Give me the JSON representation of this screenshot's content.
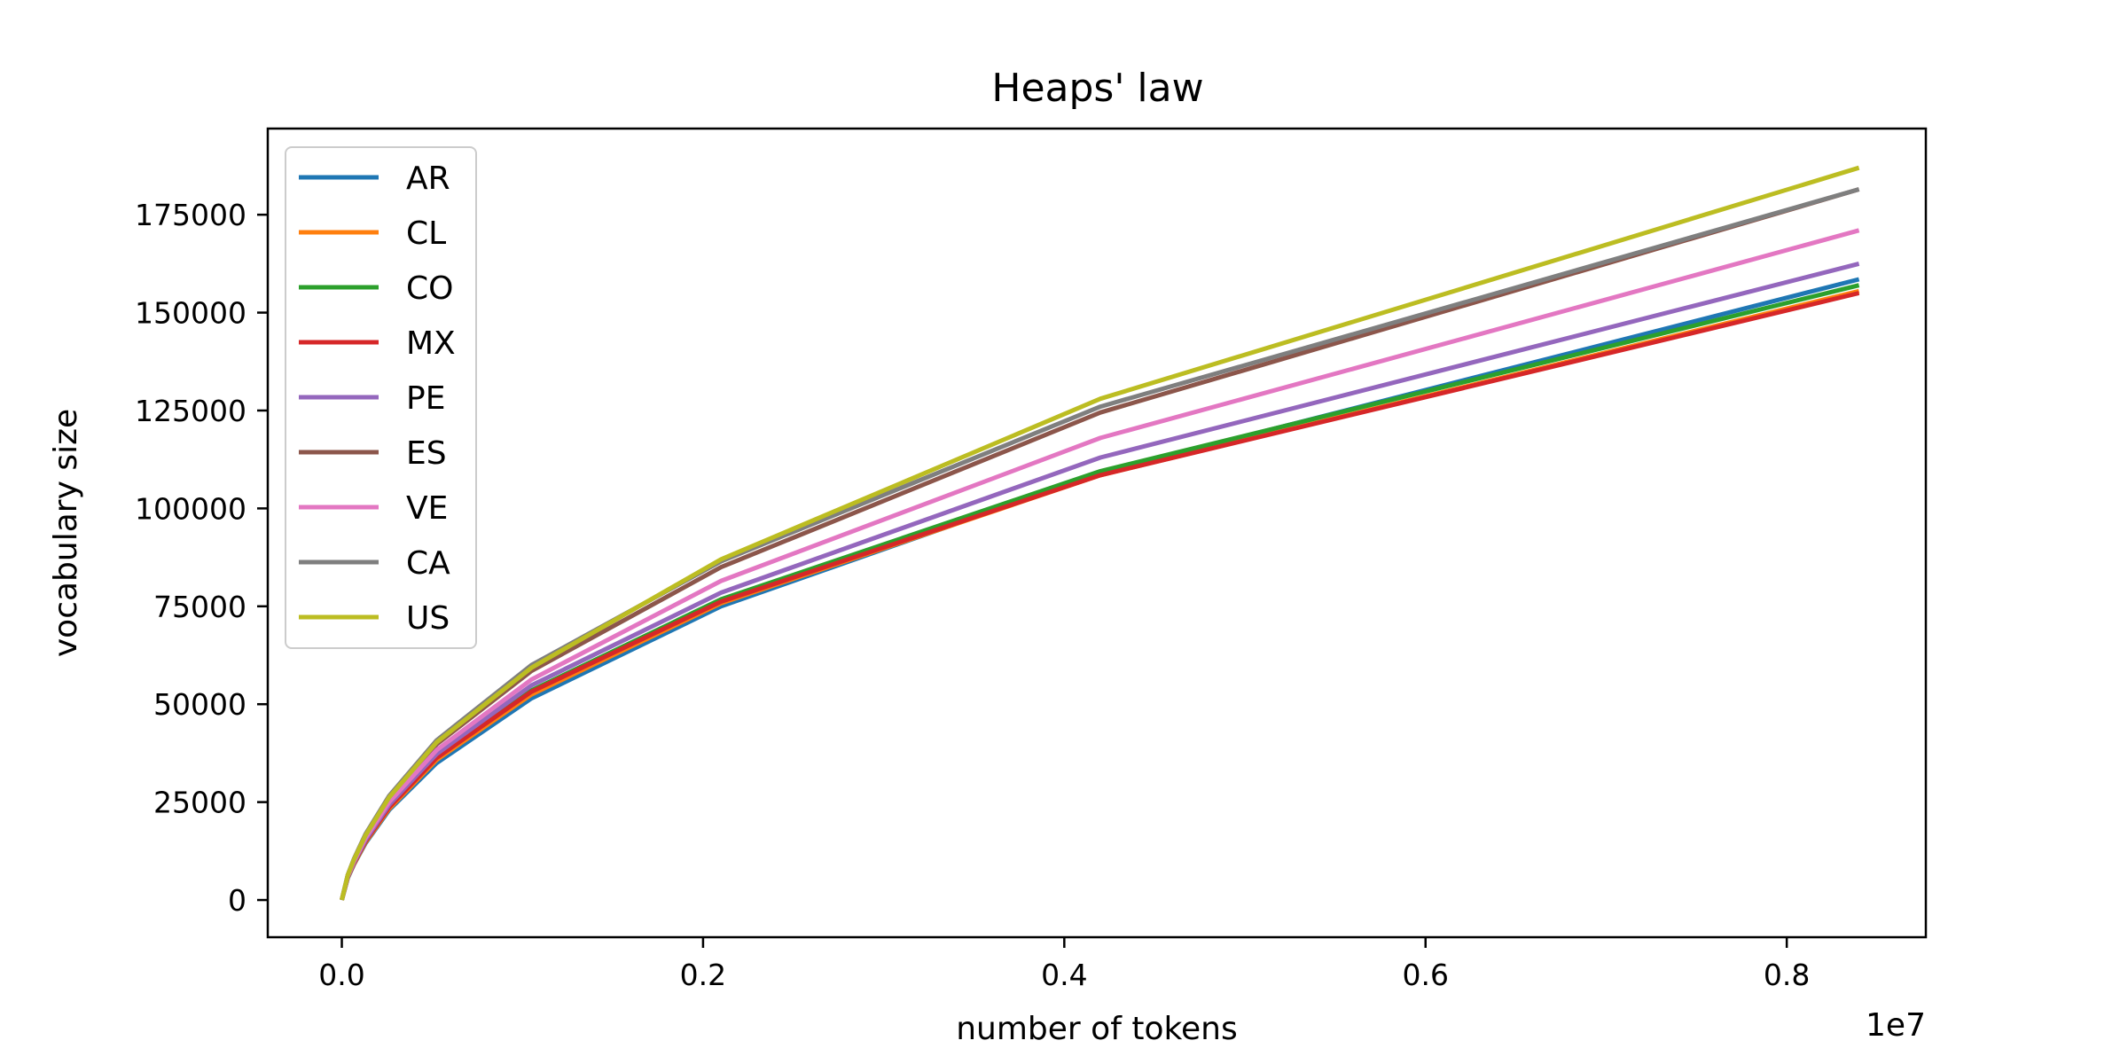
{
  "chart_data": {
    "type": "line",
    "title": "Heaps' law",
    "xlabel": "number of tokens",
    "ylabel": "vocabulary size",
    "x_offset_label": "1e7",
    "x_scale": 10000000,
    "xlim": [
      -0.041,
      0.877
    ],
    "ylim": [
      -9500,
      197000
    ],
    "x_ticks": [
      0.0,
      0.2,
      0.4,
      0.6,
      0.8
    ],
    "x_tick_labels": [
      "0.0",
      "0.2",
      "0.4",
      "0.6",
      "0.8"
    ],
    "y_ticks": [
      0,
      25000,
      50000,
      75000,
      100000,
      125000,
      150000,
      175000
    ],
    "y_tick_labels": [
      "0",
      "25000",
      "50000",
      "75000",
      "100000",
      "125000",
      "150000",
      "175000"
    ],
    "grid": false,
    "legend_position": "top-left",
    "x": [
      0,
      0.0033,
      0.0066,
      0.0131,
      0.0262,
      0.0525,
      0.105,
      0.21,
      0.42,
      0.84
    ],
    "series": [
      {
        "name": "AR",
        "color": "#1f77b4",
        "values": [
          0,
          5600,
          9000,
          14500,
          23000,
          35000,
          51500,
          75000,
          109000,
          158500
        ]
      },
      {
        "name": "CL",
        "color": "#ff7f0e",
        "values": [
          0,
          5700,
          9100,
          14700,
          23300,
          35800,
          52500,
          75800,
          108500,
          155500
        ]
      },
      {
        "name": "CO",
        "color": "#2ca02c",
        "values": [
          0,
          5800,
          9300,
          15000,
          23800,
          36500,
          53500,
          76800,
          109500,
          157000
        ]
      },
      {
        "name": "MX",
        "color": "#d62728",
        "values": [
          0,
          5800,
          9300,
          15000,
          23700,
          36300,
          53200,
          76200,
          108500,
          155000
        ]
      },
      {
        "name": "PE",
        "color": "#9467bd",
        "values": [
          0,
          5900,
          9500,
          15300,
          24300,
          37300,
          54800,
          78500,
          113000,
          162500
        ]
      },
      {
        "name": "ES",
        "color": "#8c564b",
        "values": [
          0,
          6300,
          10200,
          16500,
          26000,
          39800,
          58500,
          85000,
          124500,
          181500
        ]
      },
      {
        "name": "VE",
        "color": "#e377c2",
        "values": [
          0,
          6100,
          9800,
          15800,
          25000,
          38300,
          56300,
          81500,
          118000,
          171000
        ]
      },
      {
        "name": "CA",
        "color": "#7f7f7f",
        "values": [
          0,
          6400,
          10400,
          16800,
          26600,
          40800,
          60000,
          86500,
          126000,
          181500
        ]
      },
      {
        "name": "US",
        "color": "#bcbd22",
        "values": [
          0,
          6300,
          10200,
          16500,
          26200,
          40300,
          59300,
          87000,
          128000,
          187000
        ]
      }
    ]
  }
}
